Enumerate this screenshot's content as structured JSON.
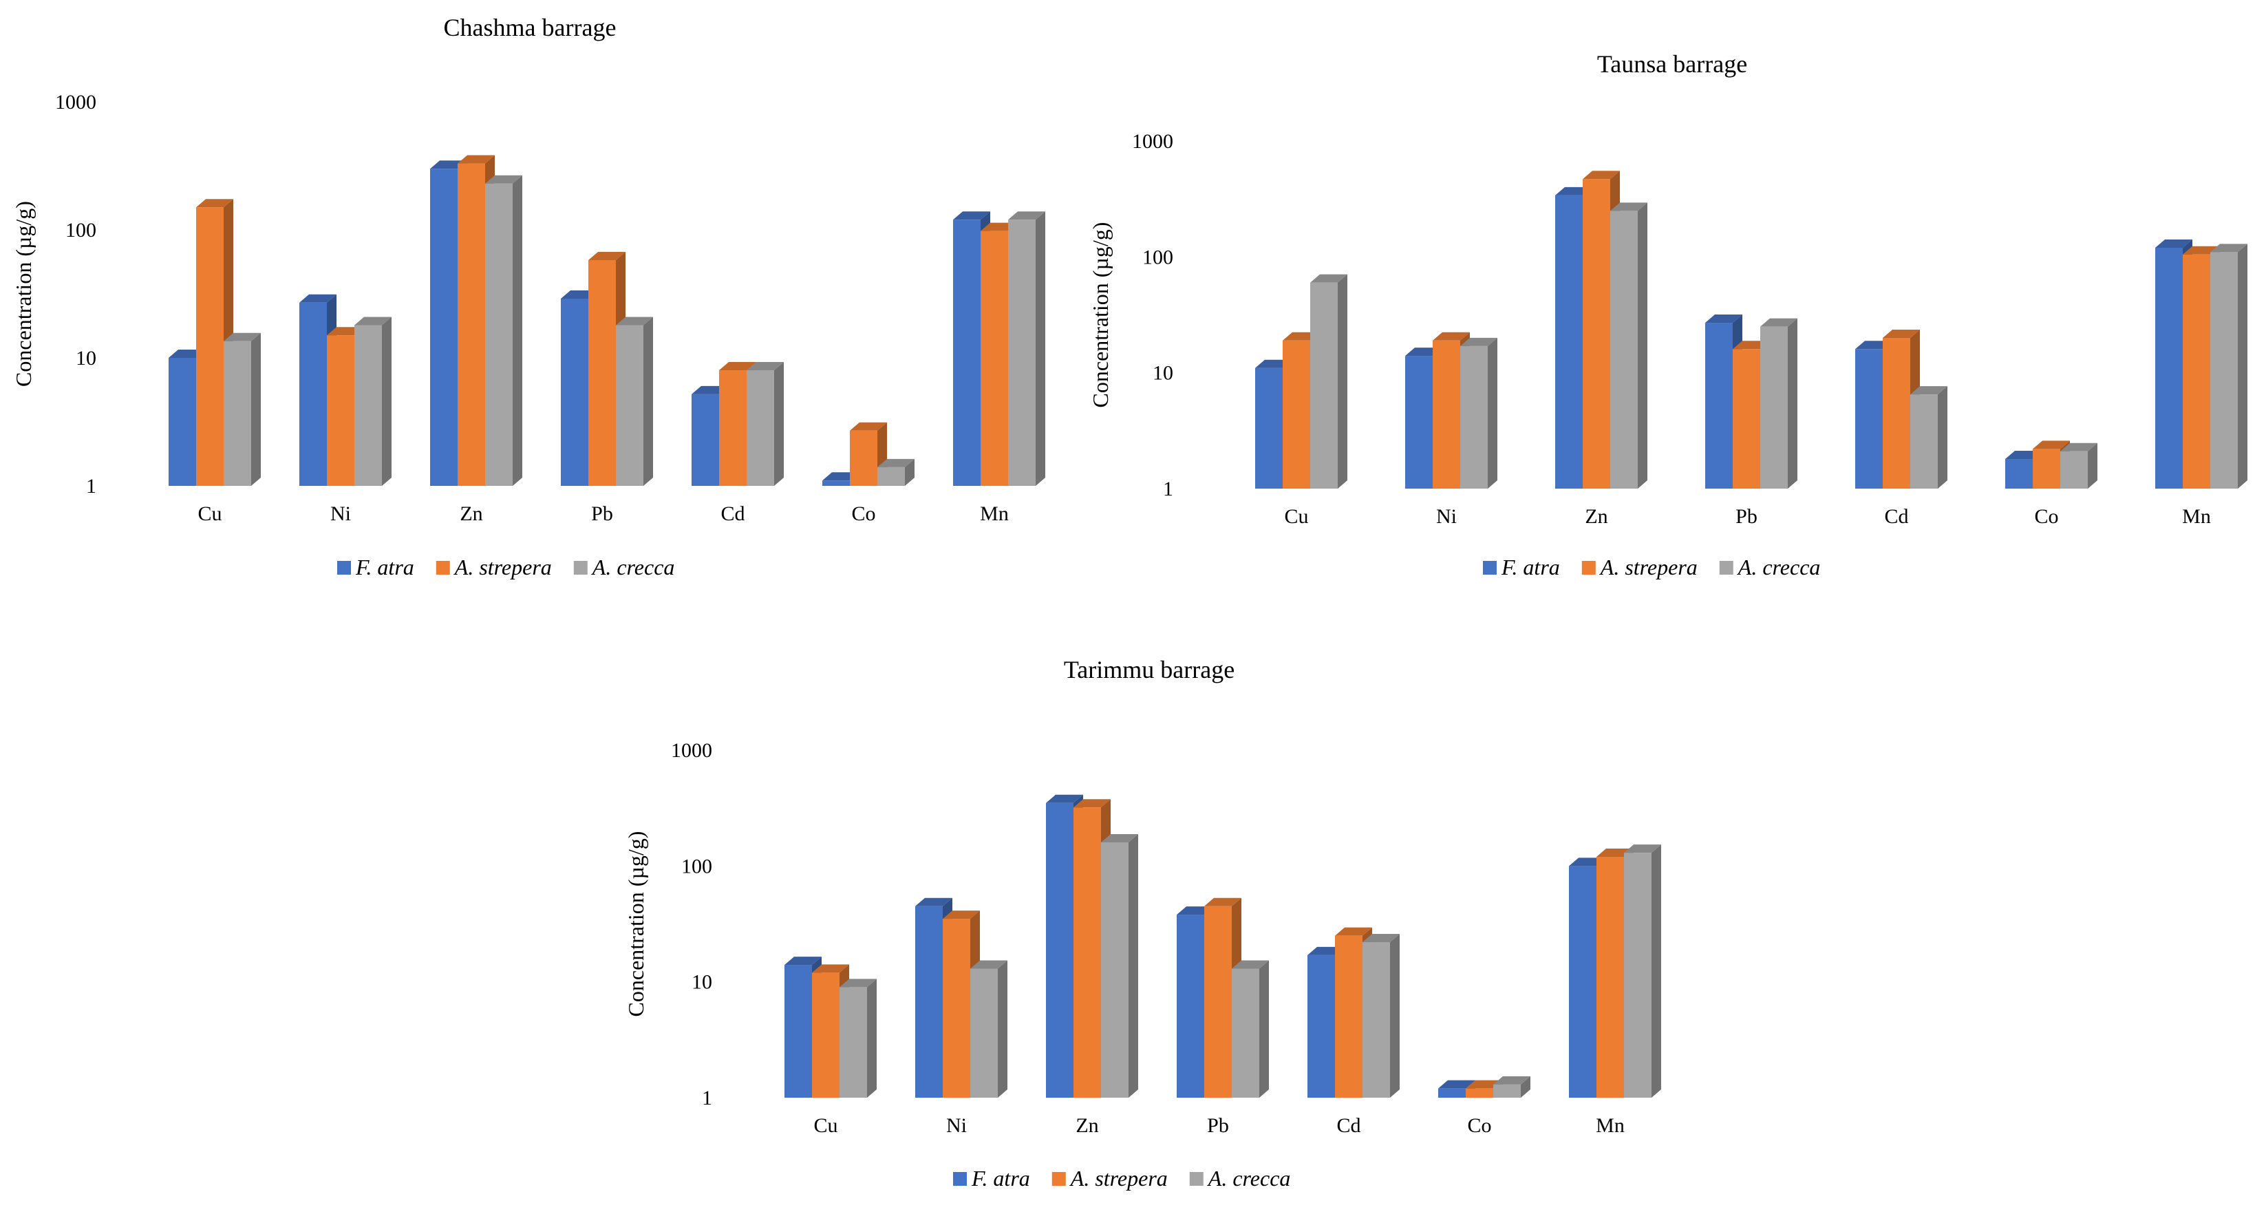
{
  "colors": {
    "F. atra": "#4472c4",
    "A. strepera": "#ed7d31",
    "A. crecca": "#a5a5a5"
  },
  "chart_data": [
    {
      "type": "bar",
      "title": "Chashma  barrage",
      "ylabel": "Concentration (µg/g)",
      "xlabel": "",
      "yscale": "log",
      "ylim": [
        1,
        1000
      ],
      "yticks": [
        "1",
        "10",
        "100",
        "1000"
      ],
      "categories": [
        "Cu",
        "Ni",
        "Zn",
        "Pb",
        "Cd",
        "Co",
        "Mn"
      ],
      "series": [
        {
          "name": "F. atra",
          "values": [
            10,
            27,
            300,
            29,
            5.2,
            1.1,
            120
          ]
        },
        {
          "name": "A. strepera",
          "values": [
            150,
            15,
            330,
            58,
            8,
            2.7,
            98
          ]
        },
        {
          "name": "A. crecca",
          "values": [
            13.5,
            18,
            230,
            18,
            8,
            1.4,
            120
          ]
        }
      ],
      "legend": [
        "F. atra",
        "A. strepera",
        "A. crecca"
      ],
      "legend_position": "bottom"
    },
    {
      "type": "bar",
      "title": "Taunsa  barrage",
      "ylabel": "Concentration (µg/g)",
      "xlabel": "",
      "yscale": "log",
      "ylim": [
        1,
        1000
      ],
      "yticks": [
        "1",
        "10",
        "100",
        "1000"
      ],
      "categories": [
        "Cu",
        "Ni",
        "Zn",
        "Pb",
        "Cd",
        "Co",
        "Mn"
      ],
      "series": [
        {
          "name": "F. atra",
          "values": [
            11,
            14,
            340,
            27,
            16,
            1.8,
            120
          ]
        },
        {
          "name": "A. strepera",
          "values": [
            19,
            19,
            470,
            16,
            20,
            2.2,
            105
          ]
        },
        {
          "name": "A. crecca",
          "values": [
            60,
            17,
            250,
            25,
            6.5,
            2.1,
            110
          ]
        }
      ],
      "legend": [
        "F. atra",
        "A. strepera",
        "A. crecca"
      ],
      "legend_position": "bottom"
    },
    {
      "type": "bar",
      "title": "Tarimmu  barrage",
      "ylabel": "Concentration (µg/g)",
      "xlabel": "",
      "yscale": "log",
      "ylim": [
        1,
        1000
      ],
      "yticks": [
        "1",
        "10",
        "100",
        "1000"
      ],
      "categories": [
        "Cu",
        "Ni",
        "Zn",
        "Pb",
        "Cd",
        "Co",
        "Mn"
      ],
      "series": [
        {
          "name": "F. atra",
          "values": [
            14,
            45,
            350,
            38,
            17,
            1.2,
            100
          ]
        },
        {
          "name": "A. strepera",
          "values": [
            12,
            35,
            320,
            45,
            25,
            1.2,
            120
          ]
        },
        {
          "name": "A. crecca",
          "values": [
            9,
            13,
            160,
            13,
            22,
            1.3,
            130
          ]
        }
      ],
      "legend": [
        "F. atra",
        "A. strepera",
        "A. crecca"
      ],
      "legend_position": "bottom"
    }
  ]
}
